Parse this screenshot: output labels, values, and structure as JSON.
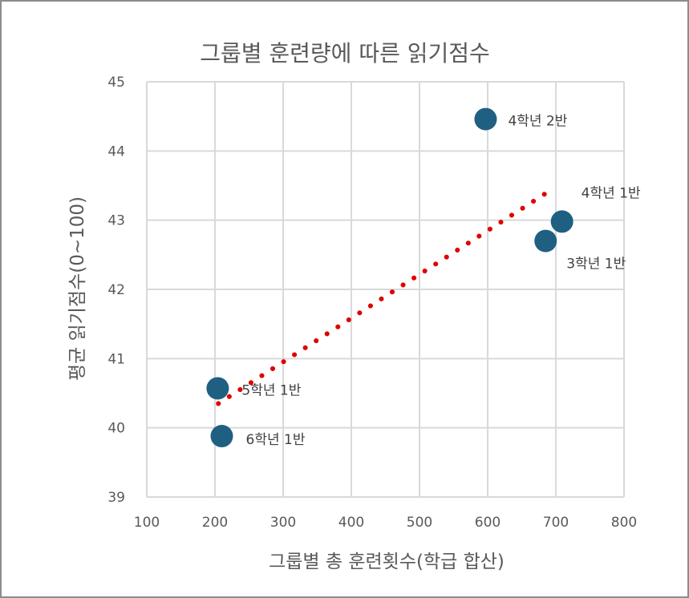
{
  "chart_data": {
    "type": "scatter",
    "title": "그룹별 훈련량에 따른 읽기점수",
    "xlabel": "그룹별 총 훈련횟수(학급 합산)",
    "ylabel": "평균 읽기점수(0~100)",
    "xlim": [
      100,
      800
    ],
    "ylim": [
      39,
      45
    ],
    "xticks": [
      100,
      200,
      300,
      400,
      500,
      600,
      700,
      800
    ],
    "yticks": [
      39,
      40,
      41,
      42,
      43,
      44,
      45
    ],
    "grid": true,
    "marker_color": "#1f5f82",
    "trendline": {
      "type": "linear",
      "color": "#e00000",
      "style": "dotted",
      "x_range": [
        205,
        695
      ],
      "y_range": [
        40.35,
        43.45
      ]
    },
    "points": [
      {
        "label": "4학년 2반",
        "x": 597,
        "y": 44.46
      },
      {
        "label": "4학년 1반",
        "x": 709,
        "y": 42.98
      },
      {
        "label": "3학년 1반",
        "x": 685,
        "y": 42.7
      },
      {
        "label": "5학년 1반",
        "x": 204,
        "y": 40.57
      },
      {
        "label": "6학년 1반",
        "x": 210,
        "y": 39.88
      }
    ]
  }
}
